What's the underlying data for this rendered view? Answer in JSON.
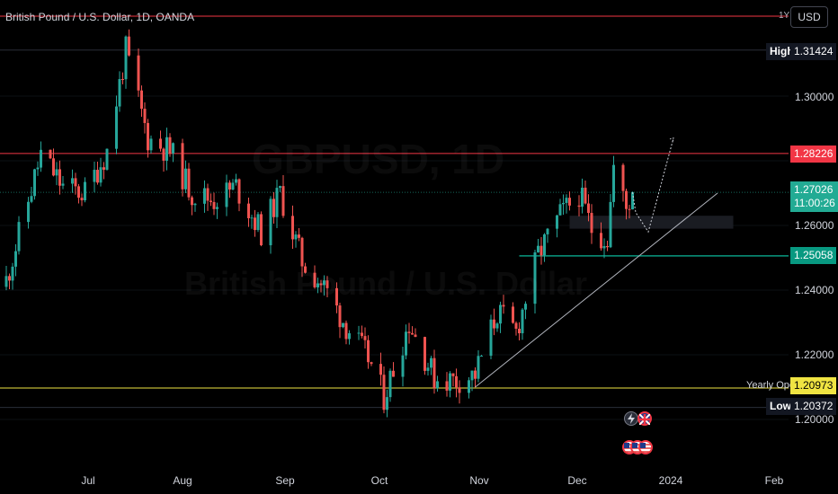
{
  "header": {
    "title": "British Pound / U.S. Dollar, 1D, OANDA",
    "range_label": "1Y",
    "currency_button": "USD"
  },
  "watermark": {
    "symbol": "GBPUSD, 1D",
    "name": "British Pound / U.S. Dollar"
  },
  "price_axis": {
    "ticks": [
      "1.30000",
      "1.26000",
      "1.24000",
      "1.22000",
      "1.20000"
    ]
  },
  "time_axis": {
    "ticks": [
      "Jul",
      "Aug",
      "Sep",
      "Oct",
      "Nov",
      "Dec",
      "2024",
      "Feb"
    ]
  },
  "markers": {
    "high_label": "High",
    "high_value": "1.31424",
    "low_label": "Low",
    "low_value": "1.20372",
    "yearly_open_label": "Yearly Open",
    "yearly_open_value": "1.20973",
    "resistance_value": "1.28226",
    "current_price": "1.27026",
    "countdown": "11:00:26",
    "support_value": "1.25058"
  },
  "colors": {
    "background": "#000000",
    "up": "#26a69a",
    "down": "#ef5350",
    "resistance": "#f23645",
    "support": "#089981",
    "yearly_open": "#f0e442"
  },
  "icons": {
    "event_row_1": [
      "lightning-icon",
      "uk-flag-icon"
    ],
    "event_row_2": [
      "us-flag-icon",
      "us-flag-icon",
      "us-flag-icon"
    ]
  },
  "chart_data": {
    "type": "candlestick",
    "symbol": "British Pound / U.S. Dollar",
    "interval": "1D",
    "ylim": [
      1.195,
      1.32
    ],
    "resistance_level": 1.28226,
    "support_level": 1.25058,
    "yearly_open": 1.20973,
    "year_low": 1.20372,
    "year_high": 1.31424,
    "current_price": 1.27026,
    "anchors": [
      {
        "date": "2023-06-05",
        "close": 1.243
      },
      {
        "date": "2023-06-09",
        "close": 1.257
      },
      {
        "date": "2023-06-16",
        "close": 1.282
      },
      {
        "date": "2023-06-23",
        "close": 1.272
      },
      {
        "date": "2023-06-30",
        "close": 1.27
      },
      {
        "date": "2023-07-07",
        "close": 1.283
      },
      {
        "date": "2023-07-13",
        "close": 1.314
      },
      {
        "date": "2023-07-20",
        "close": 1.287
      },
      {
        "date": "2023-07-27",
        "close": 1.283
      },
      {
        "date": "2023-08-03",
        "close": 1.27
      },
      {
        "date": "2023-08-10",
        "close": 1.268
      },
      {
        "date": "2023-08-17",
        "close": 1.272
      },
      {
        "date": "2023-08-25",
        "close": 1.258
      },
      {
        "date": "2023-08-31",
        "close": 1.27
      },
      {
        "date": "2023-09-07",
        "close": 1.249
      },
      {
        "date": "2023-09-14",
        "close": 1.241
      },
      {
        "date": "2023-09-21",
        "close": 1.229
      },
      {
        "date": "2023-09-28",
        "close": 1.219
      },
      {
        "date": "2023-10-03",
        "close": 1.207
      },
      {
        "date": "2023-10-11",
        "close": 1.23
      },
      {
        "date": "2023-10-19",
        "close": 1.213
      },
      {
        "date": "2023-10-26",
        "close": 1.212
      },
      {
        "date": "2023-11-01",
        "close": 1.214
      },
      {
        "date": "2023-11-08",
        "close": 1.233
      },
      {
        "date": "2023-11-14",
        "close": 1.227
      },
      {
        "date": "2023-11-21",
        "close": 1.251
      },
      {
        "date": "2023-11-28",
        "close": 1.263
      },
      {
        "date": "2023-12-04",
        "close": 1.27
      },
      {
        "date": "2023-12-08",
        "close": 1.259
      },
      {
        "date": "2023-12-13",
        "close": 1.256
      },
      {
        "date": "2023-12-15",
        "close": 1.278
      },
      {
        "date": "2023-12-19",
        "close": 1.265
      },
      {
        "date": "2023-12-21",
        "close": 1.27
      }
    ],
    "projection": [
      {
        "date": "2023-12-22",
        "price": 1.264
      },
      {
        "date": "2023-12-26",
        "price": 1.258
      },
      {
        "date": "2024-01-03",
        "price": 1.287
      }
    ],
    "trendline": [
      {
        "date": "2023-11-01",
        "price": 1.21
      },
      {
        "date": "2024-01-17",
        "price": 1.27
      }
    ],
    "zone": {
      "from": "2023-12-01",
      "to": "2024-01-22",
      "low": 1.259,
      "high": 1.263
    }
  }
}
